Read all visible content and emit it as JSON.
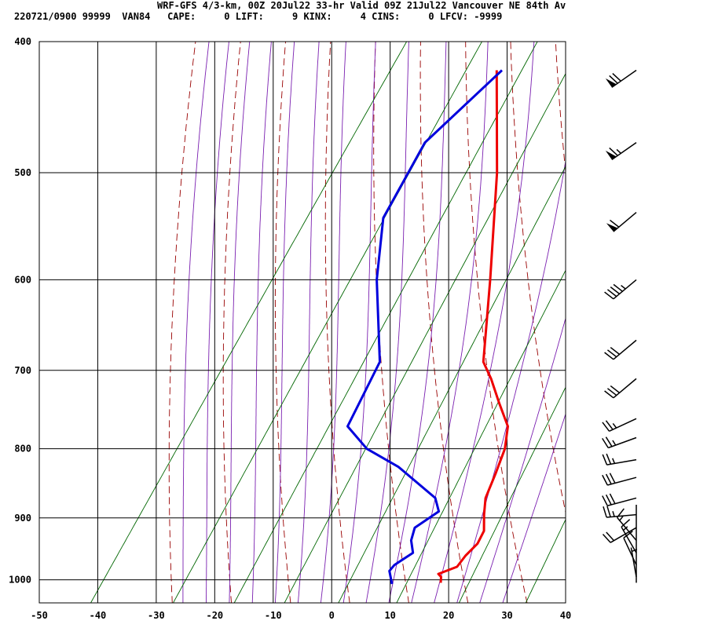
{
  "header": {
    "line1": "WRF-GFS 4/3-km, 00Z 20Jul22 33-hr Valid 09Z 21Jul22 Vancouver NE 84th Av",
    "line2": "220721/0900 99999  VAN84   CAPE:     0 LIFT:     9 KINX:     4 CINS:     0 LFCV: -9999"
  },
  "colors": {
    "temperature": "#ee0000",
    "dewpoint": "#0000dd",
    "dry_adiabat": "#990000",
    "moist_adiabat": "#7a1fb0",
    "mixing_ratio": "#006600",
    "grid": "#000000",
    "barb": "#000000"
  },
  "chart_data": {
    "type": "line",
    "subtype": "skew-T log-P sounding",
    "xlabel": "",
    "ylabel": "",
    "xlim": [
      -50,
      40
    ],
    "ylim_hpa": [
      1040,
      400
    ],
    "y_scale": "log pressure",
    "x_ticks": [
      "-50",
      "-40",
      "-30",
      "-20",
      "-10",
      "0",
      "10",
      "20",
      "30",
      "40"
    ],
    "y_ticks": [
      "400",
      "500",
      "600",
      "700",
      "800",
      "900",
      "1000"
    ],
    "grid": true,
    "series": [
      {
        "key": "temperature",
        "points": [
          {
            "p": 1005,
            "t": 16.4
          },
          {
            "p": 995,
            "t": 15.8
          },
          {
            "p": 990,
            "t": 15.0
          },
          {
            "p": 978,
            "t": 17.4
          },
          {
            "p": 960,
            "t": 17.6
          },
          {
            "p": 940,
            "t": 18.3
          },
          {
            "p": 920,
            "t": 18.0
          },
          {
            "p": 895,
            "t": 16.2
          },
          {
            "p": 870,
            "t": 14.6
          },
          {
            "p": 835,
            "t": 13.6
          },
          {
            "p": 800,
            "t": 12.4
          },
          {
            "p": 770,
            "t": 10.4
          },
          {
            "p": 740,
            "t": 6.3
          },
          {
            "p": 710,
            "t": 2.2
          },
          {
            "p": 690,
            "t": -1.0
          },
          {
            "p": 600,
            "t": -9.0
          },
          {
            "p": 500,
            "t": -19.8
          },
          {
            "p": 420,
            "t": -31.3
          }
        ]
      },
      {
        "key": "dewpoint",
        "points": [
          {
            "p": 1007,
            "t": 8.2
          },
          {
            "p": 985,
            "t": 6.3
          },
          {
            "p": 975,
            "t": 6.5
          },
          {
            "p": 955,
            "t": 8.3
          },
          {
            "p": 935,
            "t": 6.6
          },
          {
            "p": 915,
            "t": 5.8
          },
          {
            "p": 890,
            "t": 8.1
          },
          {
            "p": 870,
            "t": 6.0
          },
          {
            "p": 825,
            "t": -3.8
          },
          {
            "p": 800,
            "t": -11.2
          },
          {
            "p": 770,
            "t": -17.0
          },
          {
            "p": 690,
            "t": -18.7
          },
          {
            "p": 600,
            "t": -28.4
          },
          {
            "p": 540,
            "t": -34.2
          },
          {
            "p": 475,
            "t": -35.5
          },
          {
            "p": 420,
            "t": -30.4
          }
        ]
      }
    ],
    "background_lines": {
      "dry_adiabats_theta_c": [
        -30,
        -20,
        -10,
        0,
        10,
        20,
        30,
        40,
        50,
        60,
        70,
        80,
        90,
        100,
        110
      ],
      "moist_adiabats_c": [
        -28,
        -24,
        -20,
        -16,
        -12,
        -8,
        -4,
        0,
        4,
        8,
        12,
        16,
        20,
        24,
        28
      ],
      "mixing_ratio_g_kg": [
        0.1,
        0.4,
        1,
        2,
        4,
        8,
        16,
        32
      ]
    },
    "wind_barbs": [
      {
        "p": 420,
        "dir": 235,
        "kt": 70
      },
      {
        "p": 475,
        "dir": 235,
        "kt": 65
      },
      {
        "p": 535,
        "dir": 230,
        "kt": 60
      },
      {
        "p": 600,
        "dir": 230,
        "kt": 45
      },
      {
        "p": 665,
        "dir": 230,
        "kt": 30
      },
      {
        "p": 710,
        "dir": 230,
        "kt": 30
      },
      {
        "p": 760,
        "dir": 245,
        "kt": 25
      },
      {
        "p": 785,
        "dir": 250,
        "kt": 25
      },
      {
        "p": 815,
        "dir": 260,
        "kt": 25
      },
      {
        "p": 840,
        "dir": 255,
        "kt": 30
      },
      {
        "p": 870,
        "dir": 255,
        "kt": 30
      },
      {
        "p": 895,
        "dir": 265,
        "kt": 25
      },
      {
        "p": 915,
        "dir": 240,
        "kt": 20
      },
      {
        "p": 935,
        "dir": 320,
        "kt": 15
      },
      {
        "p": 955,
        "dir": 330,
        "kt": 15
      },
      {
        "p": 975,
        "dir": 335,
        "kt": 10
      },
      {
        "p": 995,
        "dir": 350,
        "kt": 5
      }
    ]
  }
}
